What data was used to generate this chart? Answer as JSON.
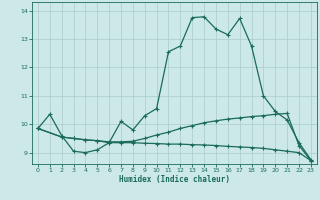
{
  "xlabel": "Humidex (Indice chaleur)",
  "xlim": [
    -0.5,
    23.5
  ],
  "ylim": [
    8.6,
    14.3
  ],
  "xticks": [
    0,
    1,
    2,
    3,
    4,
    5,
    6,
    7,
    8,
    9,
    10,
    11,
    12,
    13,
    14,
    15,
    16,
    17,
    18,
    19,
    20,
    21,
    22,
    23
  ],
  "yticks": [
    9,
    10,
    11,
    12,
    13,
    14
  ],
  "bg_color": "#cce8e8",
  "line_color": "#1a6b5a",
  "grid_color": "#aacccc",
  "line1_x": [
    0,
    1,
    2,
    3,
    4,
    5,
    6,
    7,
    8,
    9,
    10,
    11,
    12,
    13,
    14,
    15,
    16,
    17,
    18,
    19,
    20,
    21,
    22,
    23
  ],
  "line1_y": [
    9.85,
    10.35,
    9.6,
    9.05,
    9.0,
    9.1,
    9.35,
    10.1,
    9.8,
    10.3,
    10.55,
    12.55,
    12.75,
    13.75,
    13.78,
    13.35,
    13.15,
    13.72,
    12.75,
    11.0,
    10.45,
    10.15,
    9.35,
    8.75
  ],
  "line2_x": [
    0,
    2,
    3,
    4,
    5,
    6,
    7,
    8,
    9,
    10,
    11,
    12,
    13,
    14,
    15,
    16,
    17,
    18,
    19,
    20,
    21,
    22,
    23
  ],
  "line2_y": [
    9.85,
    9.55,
    9.5,
    9.45,
    9.42,
    9.35,
    9.35,
    9.35,
    9.33,
    9.32,
    9.3,
    9.3,
    9.28,
    9.27,
    9.25,
    9.22,
    9.2,
    9.18,
    9.15,
    9.1,
    9.05,
    9.0,
    8.72
  ],
  "line3_x": [
    0,
    2,
    3,
    4,
    5,
    6,
    7,
    8,
    9,
    10,
    11,
    12,
    13,
    14,
    15,
    16,
    17,
    18,
    19,
    20,
    21,
    22,
    23
  ],
  "line3_y": [
    9.85,
    9.55,
    9.5,
    9.45,
    9.42,
    9.38,
    9.38,
    9.4,
    9.5,
    9.62,
    9.72,
    9.85,
    9.95,
    10.05,
    10.12,
    10.18,
    10.22,
    10.27,
    10.3,
    10.35,
    10.38,
    9.25,
    8.72
  ]
}
